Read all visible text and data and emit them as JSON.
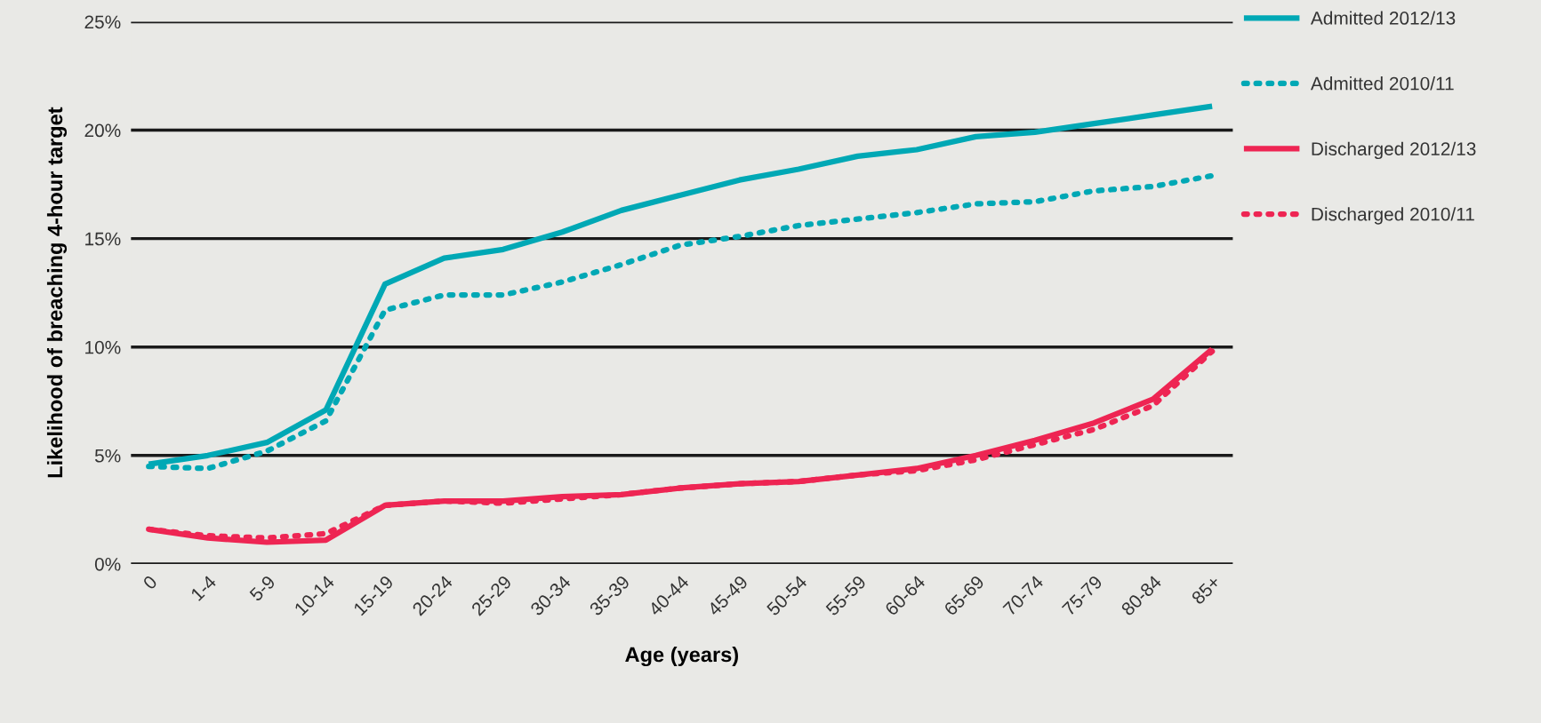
{
  "chart_data": {
    "type": "line",
    "xlabel": "Age (years)",
    "ylabel": "Likelihood of breaching 4-hour target",
    "categories": [
      "0",
      "1-4",
      "5-9",
      "10-14",
      "15-19",
      "20-24",
      "25-29",
      "30-34",
      "35-39",
      "40-44",
      "45-49",
      "50-54",
      "55-59",
      "60-64",
      "65-69",
      "70-74",
      "75-79",
      "80-84",
      "85+"
    ],
    "series": [
      {
        "name": "Admitted 2012/13",
        "color": "#00a8b5",
        "line_style": "solid",
        "values": [
          4.6,
          5.0,
          5.6,
          7.1,
          12.9,
          14.1,
          14.5,
          15.3,
          16.3,
          17.0,
          17.7,
          18.2,
          18.8,
          19.1,
          19.7,
          19.9,
          20.3,
          20.7,
          21.1
        ]
      },
      {
        "name": "Admitted 2010/11",
        "color": "#00a8b5",
        "line_style": "dotted",
        "values": [
          4.5,
          4.4,
          5.2,
          6.6,
          11.7,
          12.4,
          12.4,
          13.0,
          13.8,
          14.7,
          15.1,
          15.6,
          15.9,
          16.2,
          16.6,
          16.7,
          17.2,
          17.4,
          17.9
        ]
      },
      {
        "name": "Discharged 2012/13",
        "color": "#ee2553",
        "line_style": "solid",
        "values": [
          1.6,
          1.2,
          1.0,
          1.1,
          2.7,
          2.9,
          2.9,
          3.1,
          3.2,
          3.5,
          3.7,
          3.8,
          4.1,
          4.4,
          5.0,
          5.7,
          6.5,
          7.6,
          9.9
        ]
      },
      {
        "name": "Discharged 2010/11",
        "color": "#ee2553",
        "line_style": "dotted",
        "values": [
          1.6,
          1.3,
          1.2,
          1.4,
          2.7,
          2.9,
          2.8,
          3.0,
          3.2,
          3.5,
          3.7,
          3.8,
          4.1,
          4.3,
          4.8,
          5.5,
          6.2,
          7.3,
          9.8
        ]
      }
    ],
    "ylim": [
      0,
      25
    ],
    "yticks": [
      {
        "value": 0,
        "label": "0%"
      },
      {
        "value": 5,
        "label": "5%"
      },
      {
        "value": 10,
        "label": "10%"
      },
      {
        "value": 15,
        "label": "15%"
      },
      {
        "value": 20,
        "label": "20%"
      },
      {
        "value": 25,
        "label": "25%"
      }
    ],
    "grid": "y",
    "legend": "top right",
    "marker": "none"
  }
}
